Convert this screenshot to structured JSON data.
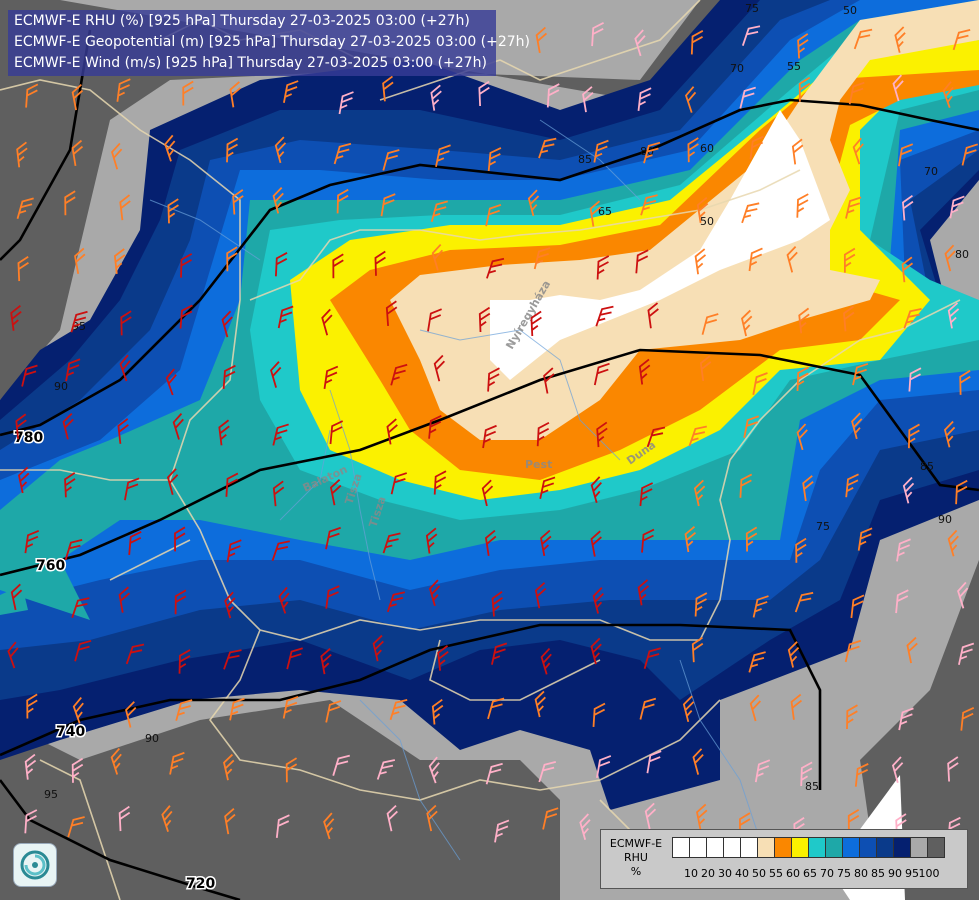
{
  "header": {
    "lines": [
      "ECMWF-E RHU (%) [925 hPa] Thursday 27-03-2025 03:00 (+27h)",
      "ECMWF-E Geopotential (m) [925 hPa] Thursday 27-03-2025 03:00 (+27h)",
      "ECMWF-E Wind (m/s) [925 hPa] Thursday 27-03-2025 03:00 (+27h)"
    ]
  },
  "legend": {
    "model": "ECMWF-E",
    "variable": "RHU",
    "unit": "%",
    "colors": [
      "#ffffff",
      "#ffffff",
      "#ffffff",
      "#ffffff",
      "#ffffff",
      "#f7dfb5",
      "#fa8700",
      "#fbf100",
      "#1fc9c9",
      "#1ea8a8",
      "#0d6ddc",
      "#0d4fb3",
      "#0a3a8a",
      "#052070",
      "#a9a9a9",
      "#5f5f5f"
    ],
    "ticks": [
      "10",
      "20",
      "30",
      "40",
      "50",
      "55",
      "60",
      "65",
      "70",
      "75",
      "80",
      "85",
      "90",
      "95",
      "100"
    ]
  },
  "isobars": [
    {
      "label": "780"
    },
    {
      "label": "760"
    },
    {
      "label": "740"
    },
    {
      "label": "720"
    }
  ],
  "rhu_labels": [
    "75",
    "55",
    "50",
    "70",
    "60",
    "80",
    "85",
    "65",
    "50",
    "95",
    "90",
    "70",
    "80",
    "75",
    "90",
    "85",
    "90",
    "95",
    "85"
  ],
  "places": [
    "Nyíregyháza",
    "Pest",
    "Duna",
    "Tisza",
    "Balaton",
    "Tisza"
  ],
  "colors": {
    "rhu_100": "#5f5f5f",
    "rhu_95": "#a9a9a9",
    "rhu_90": "#052070",
    "rhu_85": "#0a3a8a",
    "rhu_80": "#0d4fb3",
    "rhu_75": "#0d6ddc",
    "rhu_70": "#1ea8a8",
    "rhu_65": "#1fc9c9",
    "rhu_60": "#fbf100",
    "rhu_55": "#fa8700",
    "rhu_50": "#f7dfb5",
    "rhu_low": "#ffffff"
  }
}
